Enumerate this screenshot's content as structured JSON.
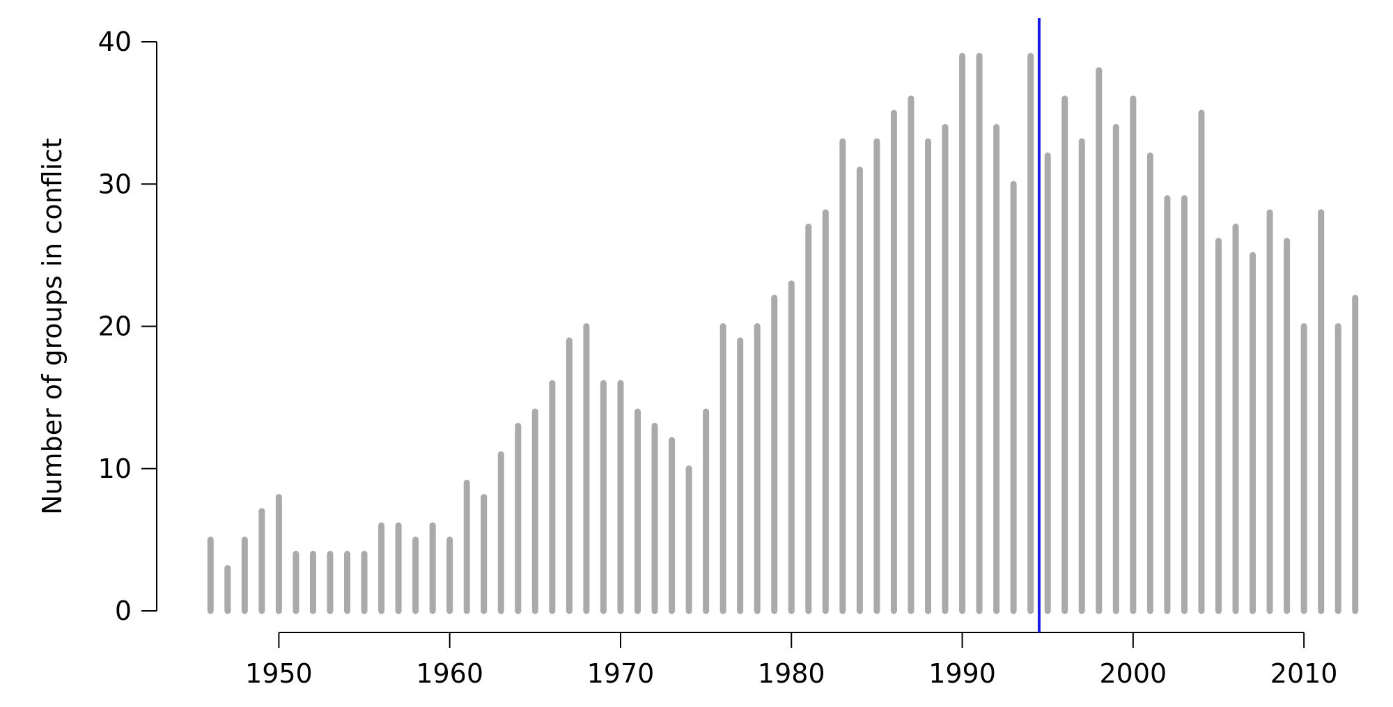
{
  "chart_data": {
    "type": "bar",
    "title": "",
    "xlabel": "",
    "ylabel": "Number of groups in conflict",
    "xlim": [
      1945.5,
      2013.5
    ],
    "ylim": [
      0,
      40
    ],
    "x_ticks": [
      1950,
      1960,
      1970,
      1980,
      1990,
      2000,
      2010
    ],
    "y_ticks": [
      0,
      10,
      20,
      30,
      40
    ],
    "grid": false,
    "legend": "none",
    "bar_color": "#aaaaaa",
    "x": [
      1946,
      1947,
      1948,
      1949,
      1950,
      1951,
      1952,
      1953,
      1954,
      1955,
      1956,
      1957,
      1958,
      1959,
      1960,
      1961,
      1962,
      1963,
      1964,
      1965,
      1966,
      1967,
      1968,
      1969,
      1970,
      1971,
      1972,
      1973,
      1974,
      1975,
      1976,
      1977,
      1978,
      1979,
      1980,
      1981,
      1982,
      1983,
      1984,
      1985,
      1986,
      1987,
      1988,
      1989,
      1990,
      1991,
      1992,
      1993,
      1994,
      1995,
      1996,
      1997,
      1998,
      1999,
      2000,
      2001,
      2002,
      2003,
      2004,
      2005,
      2006,
      2007,
      2008,
      2009,
      2010,
      2011,
      2012,
      2013
    ],
    "values": [
      5,
      3,
      5,
      7,
      8,
      4,
      4,
      4,
      4,
      4,
      6,
      6,
      5,
      6,
      5,
      9,
      8,
      11,
      13,
      14,
      16,
      19,
      20,
      16,
      16,
      14,
      13,
      12,
      10,
      14,
      20,
      19,
      20,
      22,
      23,
      27,
      28,
      33,
      31,
      33,
      35,
      36,
      33,
      34,
      39,
      39,
      34,
      30,
      39,
      32,
      36,
      33,
      38,
      34,
      36,
      32,
      29,
      29,
      35,
      26,
      27,
      25,
      28,
      26,
      20,
      28,
      20,
      22
    ],
    "reference_line": {
      "x": 1994.5,
      "color": "#1a1ae6"
    }
  }
}
